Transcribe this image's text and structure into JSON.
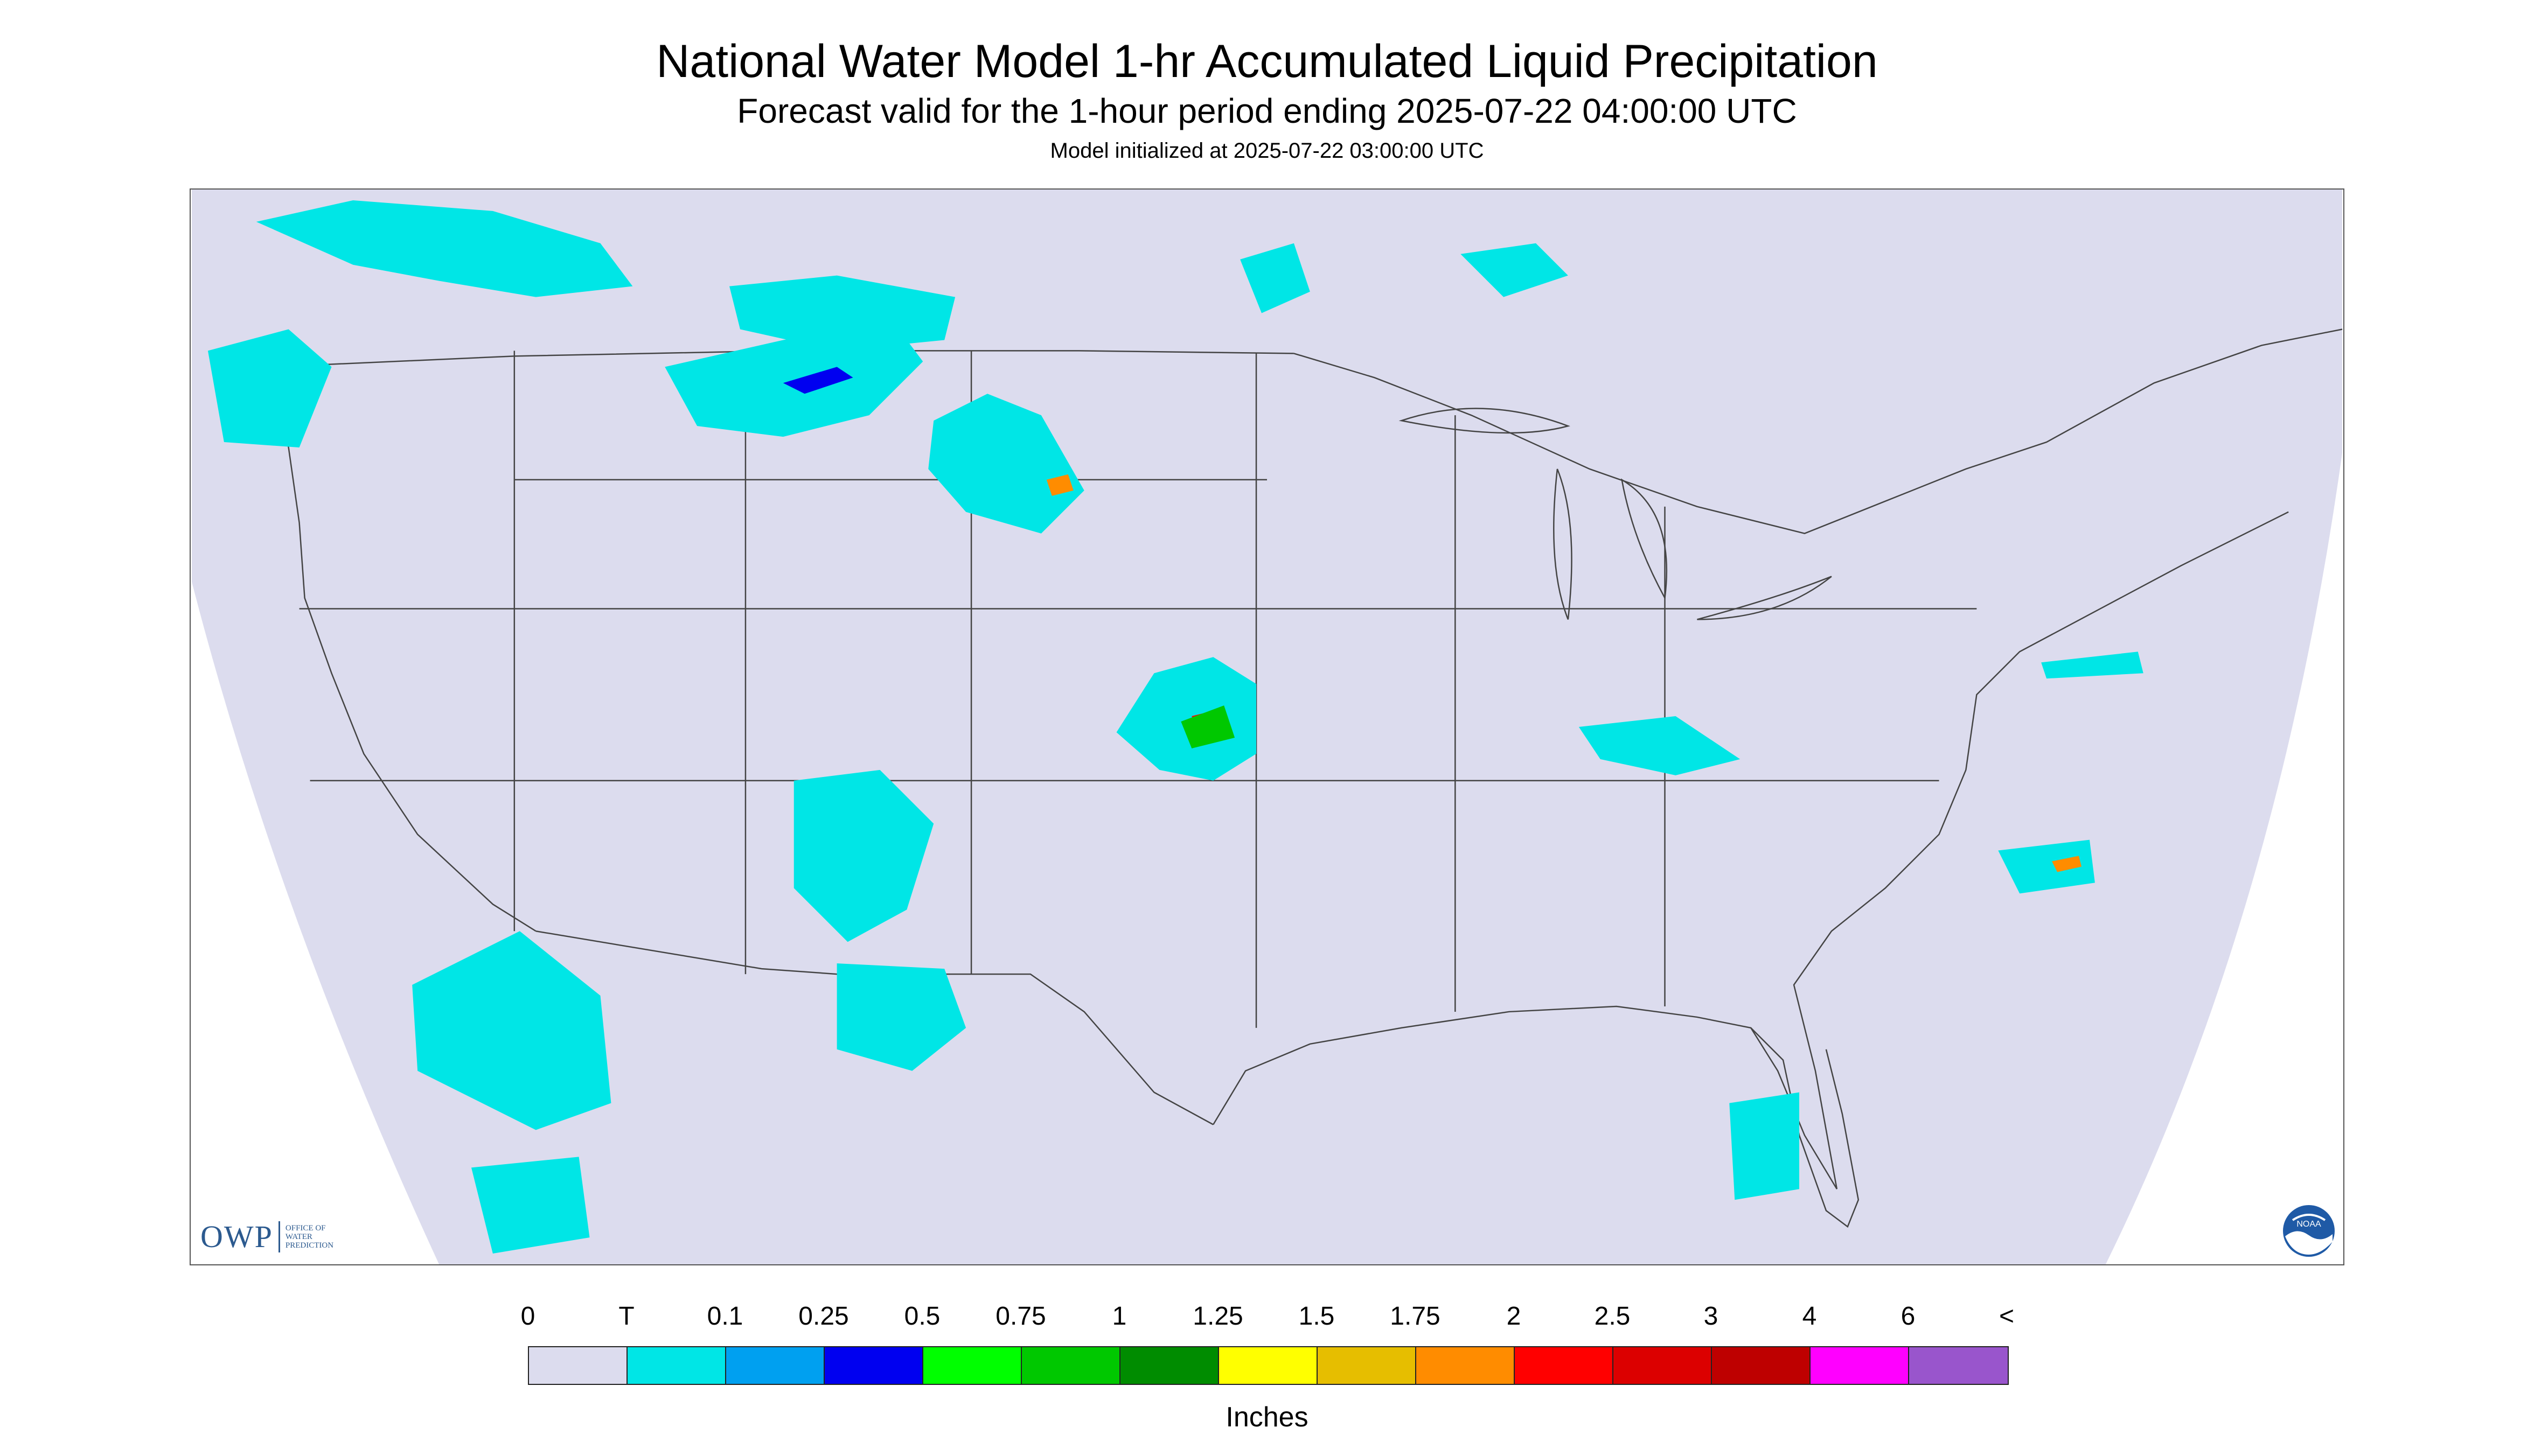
{
  "header": {
    "title": "National Water Model 1-hr Accumulated Liquid Precipitation",
    "subtitle": "Forecast valid for the 1-hour period ending 2025-07-22 04:00:00 UTC",
    "init_note": "Model initialized at 2025-07-22 03:00:00 UTC"
  },
  "map": {
    "background_color": "#dcdcee",
    "boundary_color": "#444444",
    "precip_trace_color": "#00e6e6",
    "logos": {
      "owp": {
        "mark": "OWP",
        "name_lines": [
          "OFFICE OF",
          "WATER",
          "PREDICTION"
        ]
      },
      "noaa": {
        "text": "NOAA"
      }
    }
  },
  "legend": {
    "labels": [
      "0",
      "T",
      "0.1",
      "0.25",
      "0.5",
      "0.75",
      "1",
      "1.25",
      "1.5",
      "1.75",
      "2",
      "2.5",
      "3",
      "4",
      "6",
      "<"
    ],
    "colors": [
      "#dcdcee",
      "#00e6e6",
      "#00a0f0",
      "#0000f0",
      "#00ff00",
      "#00c800",
      "#008c00",
      "#ffff00",
      "#e6be00",
      "#ff8c00",
      "#ff0000",
      "#dc0000",
      "#be0000",
      "#ff00ff",
      "#9955cc"
    ],
    "units": "Inches"
  }
}
